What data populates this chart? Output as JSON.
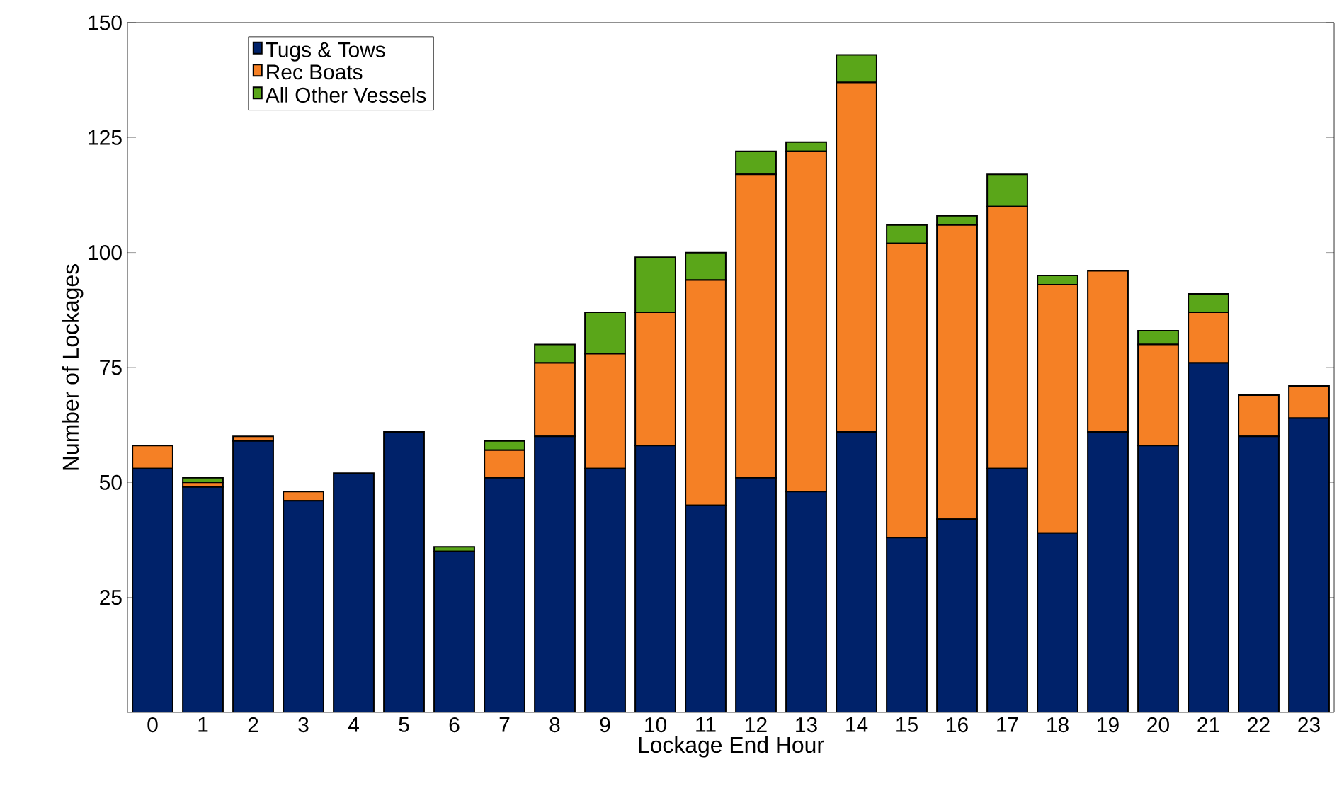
{
  "chart_data": {
    "type": "bar",
    "stacked": true,
    "xlabel": "Lockage End Hour",
    "ylabel": "Number of Lockages",
    "categories": [
      "0",
      "1",
      "2",
      "3",
      "4",
      "5",
      "6",
      "7",
      "8",
      "9",
      "10",
      "11",
      "12",
      "13",
      "14",
      "15",
      "16",
      "17",
      "18",
      "19",
      "20",
      "21",
      "22",
      "23"
    ],
    "series": [
      {
        "name": "Tugs & Tows",
        "color": "#00226a",
        "values": [
          53,
          49,
          59,
          46,
          52,
          61,
          35,
          51,
          60,
          53,
          58,
          45,
          51,
          48,
          61,
          38,
          42,
          53,
          39,
          61,
          58,
          76,
          60,
          64
        ]
      },
      {
        "name": "Rec Boats",
        "color": "#f58025",
        "values": [
          5,
          1,
          1,
          2,
          0,
          0,
          0,
          6,
          16,
          25,
          29,
          49,
          66,
          74,
          76,
          64,
          64,
          57,
          54,
          35,
          22,
          11,
          9,
          7
        ]
      },
      {
        "name": "All Other Vessels",
        "color": "#5aa619",
        "values": [
          0,
          1,
          0,
          0,
          0,
          0,
          1,
          2,
          4,
          9,
          12,
          6,
          5,
          2,
          6,
          4,
          2,
          7,
          2,
          0,
          3,
          4,
          0,
          0
        ]
      }
    ],
    "ylim": [
      0,
      150
    ],
    "yticks": [
      25,
      50,
      75,
      100,
      125,
      150
    ],
    "grid": false,
    "legend": "top left"
  }
}
